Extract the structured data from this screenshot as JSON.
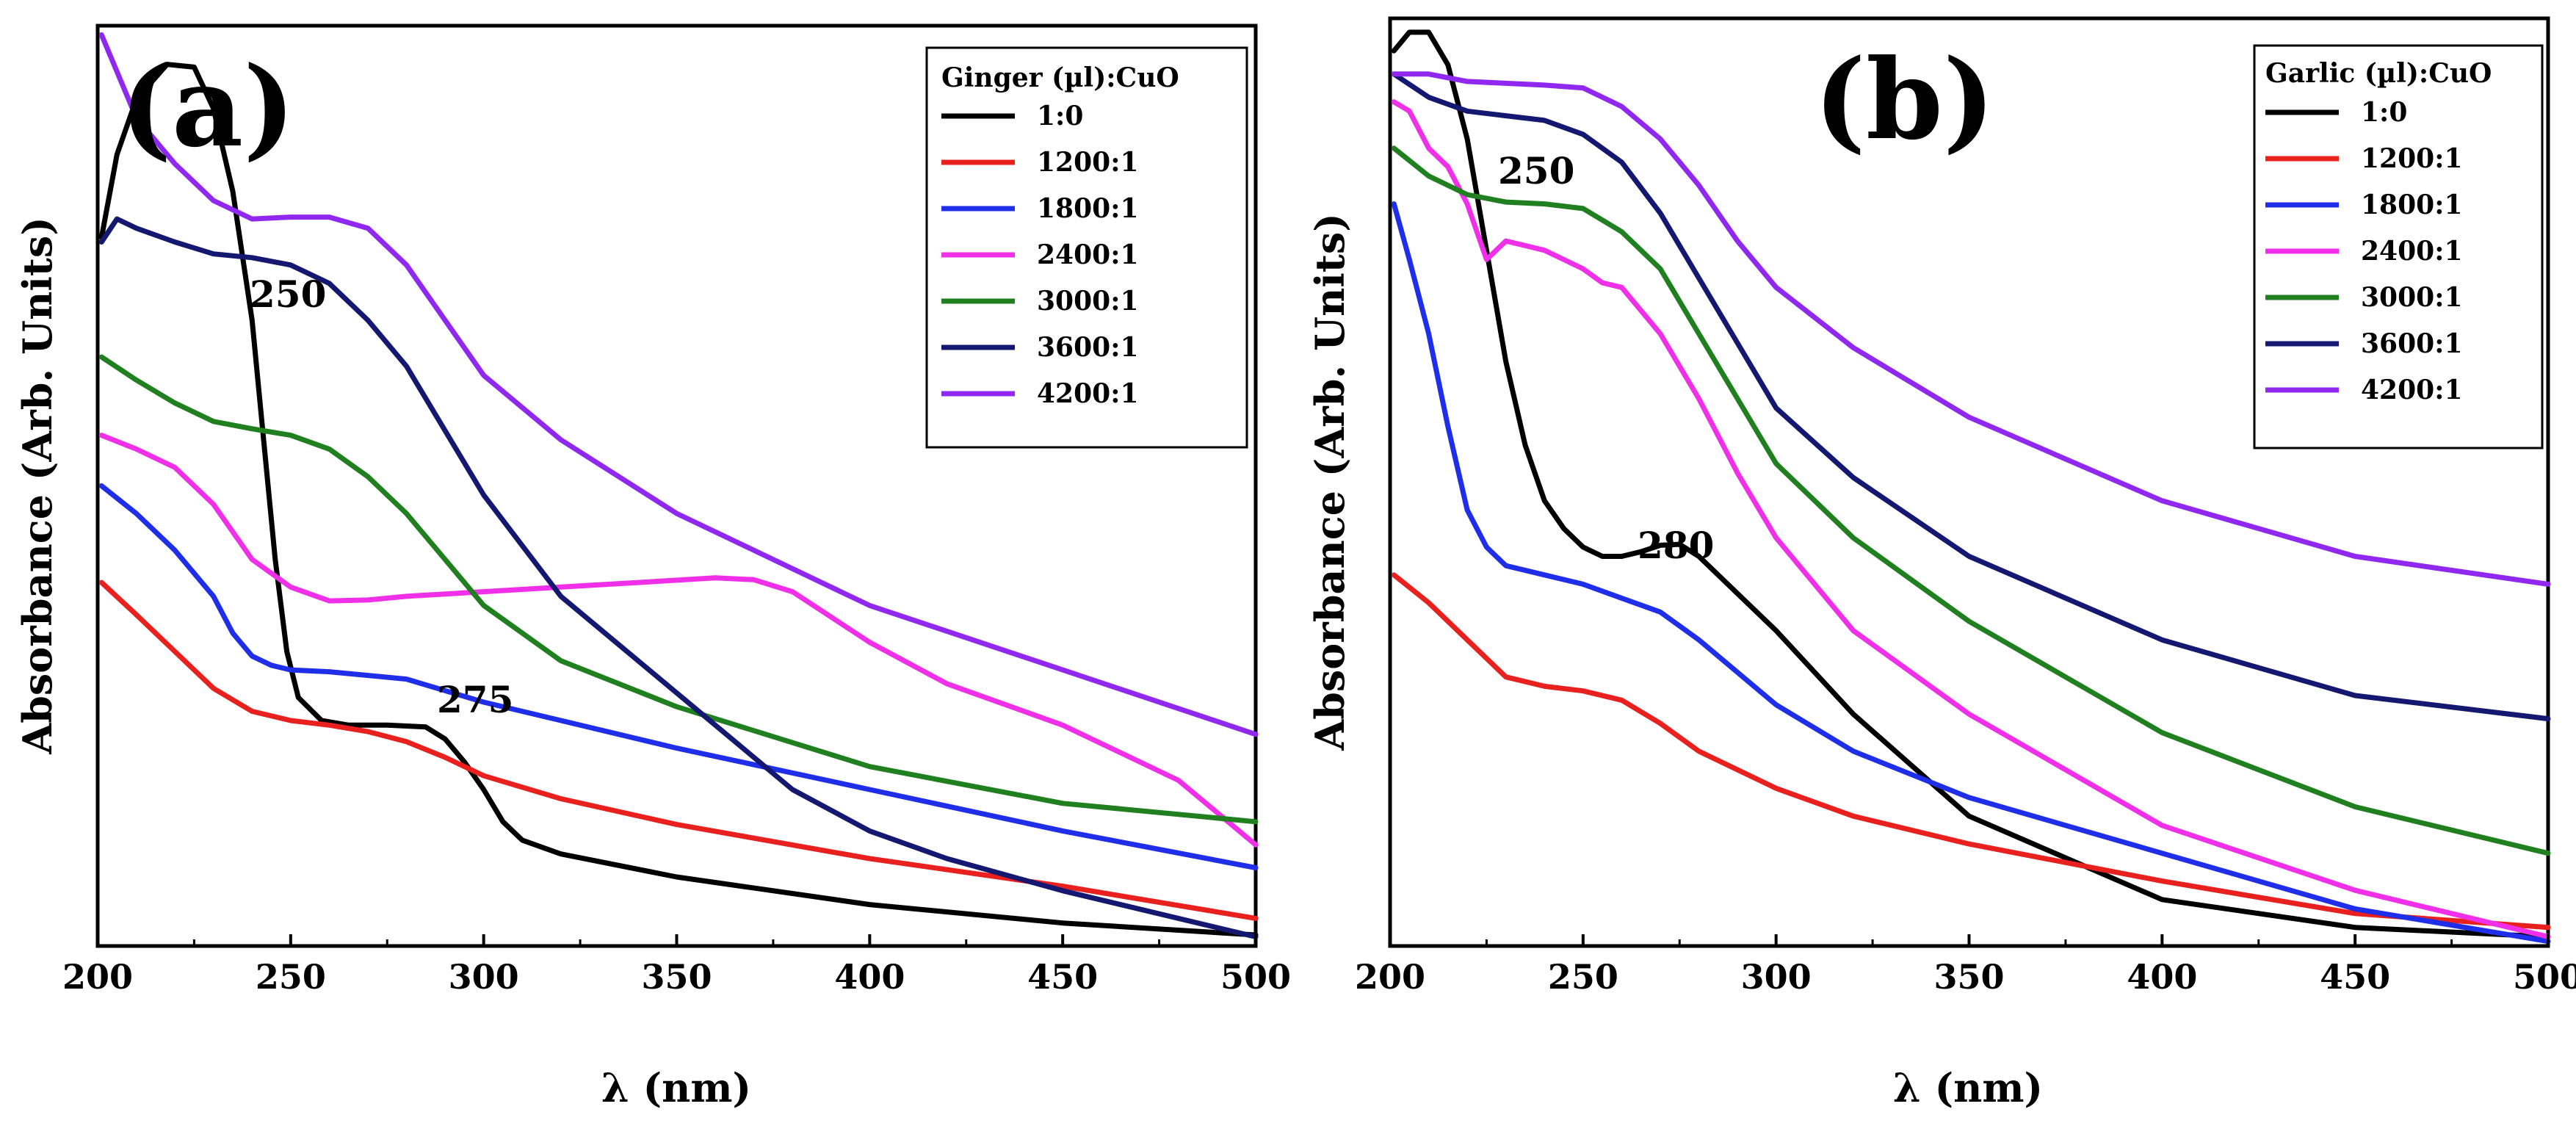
{
  "chart_data": [
    {
      "type": "line",
      "panel_label": "(a)",
      "xlabel": "λ (nm)",
      "ylabel": "Absorbance (Arb. Units)",
      "xlim": [
        200,
        500
      ],
      "ylim": [
        0,
        1
      ],
      "xticks": [
        200,
        250,
        300,
        350,
        400,
        450,
        500
      ],
      "yticks": [],
      "grid": false,
      "legend_title": "Ginger (µl):CuO",
      "legend_position": "top-right",
      "annotations": [
        {
          "text": "250",
          "x": 257,
          "y": 0.79
        },
        {
          "text": "275",
          "x": 286,
          "y": 0.295
        }
      ],
      "series": [
        {
          "name": "1:0",
          "color": "#000000",
          "x": [
            201,
            205,
            210,
            218,
            225,
            230,
            235,
            240,
            243,
            246,
            249,
            252,
            258,
            265,
            275,
            285,
            290,
            295,
            300,
            305,
            310,
            320,
            350,
            400,
            450,
            500
          ],
          "y": [
            0.77,
            0.86,
            0.92,
            0.958,
            0.955,
            0.91,
            0.82,
            0.68,
            0.55,
            0.42,
            0.32,
            0.27,
            0.245,
            0.24,
            0.24,
            0.238,
            0.225,
            0.2,
            0.17,
            0.135,
            0.115,
            0.1,
            0.075,
            0.045,
            0.025,
            0.012
          ]
        },
        {
          "name": "1200:1",
          "color": "#e8201e",
          "x": [
            201,
            210,
            220,
            230,
            240,
            250,
            260,
            270,
            280,
            290,
            300,
            320,
            350,
            400,
            450,
            500
          ],
          "y": [
            0.395,
            0.36,
            0.32,
            0.28,
            0.255,
            0.245,
            0.24,
            0.233,
            0.222,
            0.205,
            0.185,
            0.16,
            0.132,
            0.095,
            0.065,
            0.03
          ]
        },
        {
          "name": "1800:1",
          "color": "#1f2ee8",
          "x": [
            201,
            210,
            220,
            230,
            235,
            240,
            245,
            250,
            260,
            280,
            300,
            320,
            350,
            400,
            450,
            500
          ],
          "y": [
            0.5,
            0.47,
            0.43,
            0.38,
            0.34,
            0.315,
            0.305,
            0.3,
            0.298,
            0.29,
            0.265,
            0.245,
            0.215,
            0.17,
            0.125,
            0.085
          ]
        },
        {
          "name": "2400:1",
          "color": "#f030e8",
          "x": [
            201,
            210,
            220,
            230,
            240,
            250,
            260,
            270,
            280,
            300,
            320,
            340,
            360,
            370,
            380,
            400,
            420,
            450,
            480,
            500
          ],
          "y": [
            0.555,
            0.54,
            0.52,
            0.48,
            0.42,
            0.39,
            0.375,
            0.376,
            0.38,
            0.385,
            0.39,
            0.395,
            0.4,
            0.398,
            0.385,
            0.33,
            0.285,
            0.24,
            0.18,
            0.11
          ]
        },
        {
          "name": "3000:1",
          "color": "#208020",
          "x": [
            201,
            210,
            220,
            230,
            240,
            250,
            260,
            270,
            280,
            290,
            300,
            320,
            350,
            400,
            450,
            500
          ],
          "y": [
            0.64,
            0.615,
            0.59,
            0.57,
            0.562,
            0.555,
            0.54,
            0.51,
            0.47,
            0.42,
            0.37,
            0.31,
            0.26,
            0.195,
            0.155,
            0.135
          ]
        },
        {
          "name": "3600:1",
          "color": "#151870",
          "x": [
            201,
            205,
            210,
            220,
            230,
            240,
            250,
            260,
            270,
            280,
            290,
            300,
            320,
            340,
            360,
            380,
            400,
            420,
            450,
            500
          ],
          "y": [
            0.765,
            0.79,
            0.78,
            0.765,
            0.752,
            0.748,
            0.74,
            0.72,
            0.68,
            0.63,
            0.56,
            0.49,
            0.38,
            0.31,
            0.24,
            0.17,
            0.125,
            0.095,
            0.06,
            0.01
          ]
        },
        {
          "name": "4200:1",
          "color": "#9028f0",
          "x": [
            201,
            210,
            220,
            230,
            240,
            250,
            260,
            270,
            280,
            290,
            300,
            320,
            350,
            400,
            450,
            500
          ],
          "y": [
            0.99,
            0.9,
            0.85,
            0.81,
            0.79,
            0.792,
            0.792,
            0.78,
            0.74,
            0.68,
            0.62,
            0.55,
            0.47,
            0.37,
            0.3,
            0.23
          ]
        }
      ]
    },
    {
      "type": "line",
      "panel_label": "(b)",
      "xlabel": "λ (nm)",
      "ylabel": "Absorbance (Arb. Units)",
      "xlim": [
        200,
        500
      ],
      "ylim": [
        0,
        1
      ],
      "xticks": [
        200,
        250,
        300,
        350,
        400,
        450,
        500
      ],
      "yticks": [],
      "grid": false,
      "legend_title": "Garlic (µl):CuO",
      "legend_position": "top-right",
      "annotations": [
        {
          "text": "250",
          "x": 240,
          "y": 0.895
        },
        {
          "text": "280",
          "x": 280,
          "y": 0.465
        }
      ],
      "series": [
        {
          "name": "1:0",
          "color": "#000000",
          "x": [
            201,
            205,
            210,
            215,
            220,
            225,
            230,
            235,
            240,
            245,
            250,
            255,
            260,
            265,
            270,
            275,
            280,
            290,
            300,
            320,
            350,
            400,
            450,
            500
          ],
          "y": [
            0.965,
            0.985,
            0.985,
            0.95,
            0.87,
            0.75,
            0.63,
            0.54,
            0.48,
            0.45,
            0.43,
            0.42,
            0.42,
            0.425,
            0.432,
            0.433,
            0.42,
            0.38,
            0.34,
            0.25,
            0.14,
            0.05,
            0.02,
            0.01
          ]
        },
        {
          "name": "1200:1",
          "color": "#e8201e",
          "x": [
            201,
            210,
            220,
            230,
            240,
            250,
            260,
            270,
            280,
            300,
            320,
            350,
            400,
            450,
            500
          ],
          "y": [
            0.4,
            0.37,
            0.33,
            0.29,
            0.28,
            0.275,
            0.265,
            0.24,
            0.21,
            0.17,
            0.14,
            0.11,
            0.07,
            0.035,
            0.02
          ]
        },
        {
          "name": "1800:1",
          "color": "#1f2ee8",
          "x": [
            201,
            205,
            210,
            215,
            220,
            225,
            230,
            240,
            250,
            260,
            270,
            280,
            300,
            320,
            350,
            400,
            450,
            500
          ],
          "y": [
            0.8,
            0.74,
            0.66,
            0.56,
            0.47,
            0.43,
            0.41,
            0.4,
            0.39,
            0.375,
            0.36,
            0.33,
            0.26,
            0.21,
            0.16,
            0.1,
            0.04,
            0.005
          ]
        },
        {
          "name": "2400:1",
          "color": "#f030e8",
          "x": [
            201,
            205,
            210,
            215,
            220,
            225,
            230,
            235,
            240,
            245,
            250,
            255,
            260,
            270,
            280,
            290,
            300,
            320,
            350,
            400,
            450,
            500
          ],
          "y": [
            0.91,
            0.9,
            0.86,
            0.84,
            0.8,
            0.74,
            0.76,
            0.755,
            0.75,
            0.74,
            0.73,
            0.715,
            0.71,
            0.66,
            0.59,
            0.51,
            0.44,
            0.34,
            0.25,
            0.13,
            0.06,
            0.01
          ]
        },
        {
          "name": "3000:1",
          "color": "#208020",
          "x": [
            201,
            210,
            220,
            230,
            240,
            250,
            260,
            270,
            280,
            290,
            300,
            320,
            350,
            400,
            450,
            500
          ],
          "y": [
            0.86,
            0.83,
            0.81,
            0.802,
            0.8,
            0.795,
            0.77,
            0.73,
            0.66,
            0.59,
            0.52,
            0.44,
            0.35,
            0.23,
            0.15,
            0.1
          ]
        },
        {
          "name": "3600:1",
          "color": "#151870",
          "x": [
            201,
            210,
            220,
            230,
            240,
            250,
            260,
            270,
            280,
            290,
            300,
            320,
            350,
            400,
            450,
            500
          ],
          "y": [
            0.94,
            0.915,
            0.9,
            0.895,
            0.89,
            0.875,
            0.845,
            0.79,
            0.72,
            0.65,
            0.58,
            0.505,
            0.42,
            0.33,
            0.27,
            0.245
          ]
        },
        {
          "name": "4200:1",
          "color": "#9028f0",
          "x": [
            201,
            210,
            220,
            230,
            240,
            250,
            260,
            270,
            280,
            290,
            300,
            320,
            350,
            400,
            450,
            500
          ],
          "y": [
            0.94,
            0.94,
            0.932,
            0.93,
            0.928,
            0.925,
            0.905,
            0.87,
            0.82,
            0.76,
            0.71,
            0.645,
            0.57,
            0.48,
            0.42,
            0.39
          ]
        }
      ]
    }
  ]
}
